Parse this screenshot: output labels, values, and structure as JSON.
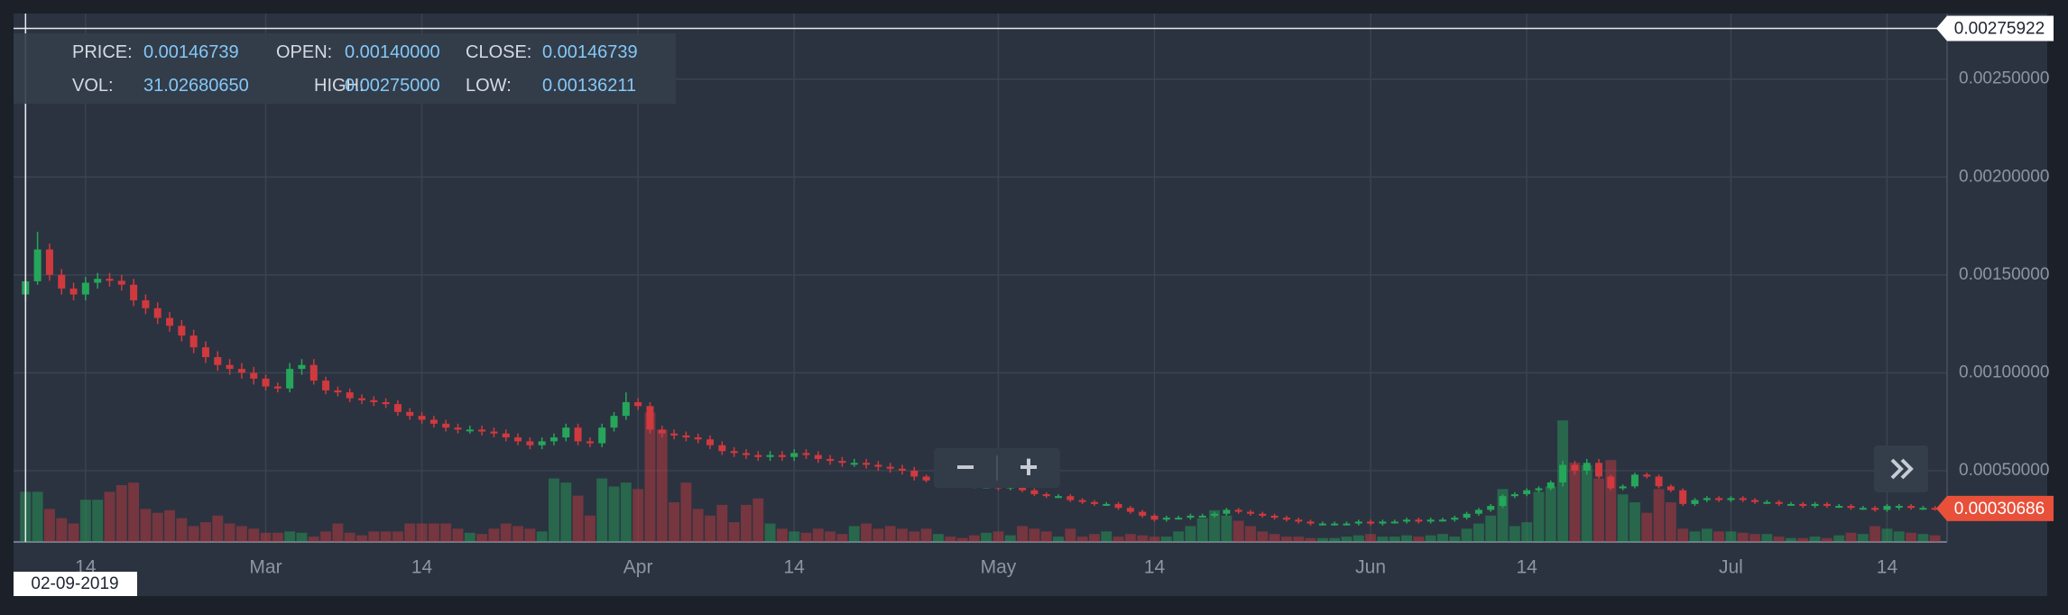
{
  "chart_data": {
    "type": "candlestick",
    "xlim": [
      "2019-02-08",
      "2019-07-19"
    ],
    "ylim": [
      0.000136,
      0.002835
    ],
    "grid": true,
    "up_color": "#26a65b",
    "down_color": "#d0393e",
    "yticks": [
      {
        "value": 0.0005,
        "label": "0.00050000"
      },
      {
        "value": 0.001,
        "label": "0.00100000"
      },
      {
        "value": 0.0015,
        "label": "0.00150000"
      },
      {
        "value": 0.002,
        "label": "0.00200000"
      },
      {
        "value": 0.0025,
        "label": "0.00250000"
      }
    ],
    "xticks": [
      {
        "value": "2019-02-14",
        "label": "14"
      },
      {
        "value": "2019-03-01",
        "label": "Mar"
      },
      {
        "value": "2019-03-14",
        "label": "14"
      },
      {
        "value": "2019-04-01",
        "label": "Apr"
      },
      {
        "value": "2019-04-14",
        "label": "14"
      },
      {
        "value": "2019-05-01",
        "label": "May"
      },
      {
        "value": "2019-05-14",
        "label": "14"
      },
      {
        "value": "2019-06-01",
        "label": "Jun"
      },
      {
        "value": "2019-06-14",
        "label": "14"
      },
      {
        "value": "2019-07-01",
        "label": "Jul"
      },
      {
        "value": "2019-07-14",
        "label": "14"
      }
    ],
    "x": [
      "2019-02-09",
      "2019-02-10",
      "2019-02-11",
      "2019-02-12",
      "2019-02-13",
      "2019-02-14",
      "2019-02-15",
      "2019-02-16",
      "2019-02-17",
      "2019-02-18",
      "2019-02-19",
      "2019-02-20",
      "2019-02-21",
      "2019-02-22",
      "2019-02-23",
      "2019-02-24",
      "2019-02-25",
      "2019-02-26",
      "2019-02-27",
      "2019-02-28",
      "2019-03-01",
      "2019-03-02",
      "2019-03-03",
      "2019-03-04",
      "2019-03-05",
      "2019-03-06",
      "2019-03-07",
      "2019-03-08",
      "2019-03-09",
      "2019-03-10",
      "2019-03-11",
      "2019-03-12",
      "2019-03-13",
      "2019-03-14",
      "2019-03-15",
      "2019-03-16",
      "2019-03-17",
      "2019-03-18",
      "2019-03-19",
      "2019-03-20",
      "2019-03-21",
      "2019-03-22",
      "2019-03-23",
      "2019-03-24",
      "2019-03-25",
      "2019-03-26",
      "2019-03-27",
      "2019-03-28",
      "2019-03-29",
      "2019-03-30",
      "2019-03-31",
      "2019-04-01",
      "2019-04-02",
      "2019-04-03",
      "2019-04-04",
      "2019-04-05",
      "2019-04-06",
      "2019-04-07",
      "2019-04-08",
      "2019-04-09",
      "2019-04-10",
      "2019-04-11",
      "2019-04-12",
      "2019-04-13",
      "2019-04-14",
      "2019-04-15",
      "2019-04-16",
      "2019-04-17",
      "2019-04-18",
      "2019-04-19",
      "2019-04-20",
      "2019-04-21",
      "2019-04-22",
      "2019-04-23",
      "2019-04-24",
      "2019-04-25",
      "2019-04-26",
      "2019-04-27",
      "2019-04-28",
      "2019-04-29",
      "2019-04-30",
      "2019-05-01",
      "2019-05-02",
      "2019-05-03",
      "2019-05-04",
      "2019-05-05",
      "2019-05-06",
      "2019-05-07",
      "2019-05-08",
      "2019-05-09",
      "2019-05-10",
      "2019-05-11",
      "2019-05-12",
      "2019-05-13",
      "2019-05-14",
      "2019-05-15",
      "2019-05-16",
      "2019-05-17",
      "2019-05-18",
      "2019-05-19",
      "2019-05-20",
      "2019-05-21",
      "2019-05-22",
      "2019-05-23",
      "2019-05-24",
      "2019-05-25",
      "2019-05-26",
      "2019-05-27",
      "2019-05-28",
      "2019-05-29",
      "2019-05-30",
      "2019-05-31",
      "2019-06-01",
      "2019-06-02",
      "2019-06-03",
      "2019-06-04",
      "2019-06-05",
      "2019-06-06",
      "2019-06-07",
      "2019-06-08",
      "2019-06-09",
      "2019-06-10",
      "2019-06-11",
      "2019-06-12",
      "2019-06-13",
      "2019-06-14",
      "2019-06-15",
      "2019-06-16",
      "2019-06-17",
      "2019-06-18",
      "2019-06-19",
      "2019-06-20",
      "2019-06-21",
      "2019-06-22",
      "2019-06-23",
      "2019-06-24",
      "2019-06-25",
      "2019-06-26",
      "2019-06-27",
      "2019-06-28",
      "2019-06-29",
      "2019-06-30",
      "2019-07-01",
      "2019-07-02",
      "2019-07-03",
      "2019-07-04",
      "2019-07-05",
      "2019-07-06",
      "2019-07-07",
      "2019-07-08",
      "2019-07-09",
      "2019-07-10",
      "2019-07-11",
      "2019-07-12",
      "2019-07-13",
      "2019-07-14",
      "2019-07-15",
      "2019-07-16",
      "2019-07-17",
      "2019-07-18"
    ],
    "open": [
      0.0014,
      0.00146739,
      0.00163,
      0.0015,
      0.00143,
      0.0014,
      0.00146,
      0.00148,
      0.00147,
      0.00145,
      0.00137,
      0.00133,
      0.00128,
      0.00124,
      0.00119,
      0.00113,
      0.00108,
      0.00104,
      0.00102,
      0.001,
      0.00097,
      0.00093,
      0.00092,
      0.00102,
      0.00104,
      0.00096,
      0.00091,
      0.0009,
      0.00087,
      0.00086,
      0.00085,
      0.00084,
      0.0008,
      0.00078,
      0.00076,
      0.00074,
      0.00072,
      0.00071,
      0.00071,
      0.0007,
      0.00069,
      0.00067,
      0.00065,
      0.00063,
      0.00065,
      0.00067,
      0.00072,
      0.00065,
      0.00064,
      0.00072,
      0.00078,
      0.00085,
      0.00083,
      0.00071,
      0.00069,
      0.00068,
      0.00067,
      0.00066,
      0.00063,
      0.0006,
      0.00059,
      0.00058,
      0.00057,
      0.00058,
      0.00057,
      0.00059,
      0.00058,
      0.00056,
      0.00055,
      0.00054,
      0.00054,
      0.00053,
      0.00052,
      0.00051,
      0.0005,
      0.00047,
      0.00045,
      0.00045,
      0.00044,
      0.00043,
      0.00042,
      0.00042,
      0.00041,
      0.00042,
      0.0004,
      0.00038,
      0.00037,
      0.00037,
      0.00035,
      0.00034,
      0.00033,
      0.00033,
      0.00031,
      0.00029,
      0.00027,
      0.00025,
      0.00026,
      0.00026,
      0.00027,
      0.00027,
      0.00028,
      0.0003,
      0.00029,
      0.00028,
      0.00027,
      0.00026,
      0.00025,
      0.00024,
      0.00023,
      0.00023,
      0.00023,
      0.00023,
      0.00024,
      0.00023,
      0.00024,
      0.00024,
      0.00025,
      0.00024,
      0.00025,
      0.00025,
      0.00026,
      0.00028,
      0.0003,
      0.00032,
      0.00037,
      0.00038,
      0.0004,
      0.00041,
      0.00044,
      0.00053,
      0.0005,
      0.00054,
      0.00047,
      0.00041,
      0.00042,
      0.00048,
      0.00047,
      0.00042,
      0.0004,
      0.00033,
      0.00035,
      0.00036,
      0.00035,
      0.00036,
      0.00035,
      0.00034,
      0.00034,
      0.00033,
      0.00033,
      0.00032,
      0.00033,
      0.00032,
      0.00032,
      0.00031,
      0.00031,
      0.0003,
      0.00032,
      0.00032,
      0.00031,
      0.00031
    ],
    "high": [
      0.00275,
      0.00172,
      0.00166,
      0.00153,
      0.00146,
      0.00149,
      0.00151,
      0.00151,
      0.0015,
      0.00148,
      0.0014,
      0.00136,
      0.00131,
      0.00127,
      0.00122,
      0.00116,
      0.00111,
      0.00107,
      0.00105,
      0.00103,
      0.00099,
      0.00095,
      0.00105,
      0.00107,
      0.00107,
      0.00098,
      0.00093,
      0.00092,
      0.00089,
      0.00088,
      0.00087,
      0.00086,
      0.00082,
      0.0008,
      0.00078,
      0.00076,
      0.00074,
      0.00073,
      0.00073,
      0.00072,
      0.00071,
      0.00069,
      0.00067,
      0.00067,
      0.00069,
      0.00074,
      0.00074,
      0.00067,
      0.00074,
      0.0008,
      0.0009,
      0.00087,
      0.00085,
      0.00073,
      0.00071,
      0.0007,
      0.00069,
      0.00068,
      0.00065,
      0.00062,
      0.00061,
      0.0006,
      0.0006,
      0.0006,
      0.00061,
      0.00061,
      0.0006,
      0.00058,
      0.00057,
      0.00056,
      0.00056,
      0.00055,
      0.00054,
      0.00053,
      0.00052,
      0.00048,
      0.00046,
      0.00046,
      0.00045,
      0.00044,
      0.00043,
      0.00043,
      0.00043,
      0.00043,
      0.00041,
      0.00039,
      0.00038,
      0.00038,
      0.00036,
      0.00035,
      0.00034,
      0.00034,
      0.00032,
      0.0003,
      0.00028,
      0.00027,
      0.00027,
      0.00028,
      0.00028,
      0.00029,
      0.00031,
      0.00031,
      0.0003,
      0.00029,
      0.00028,
      0.00027,
      0.00026,
      0.00025,
      0.00024,
      0.00024,
      0.00024,
      0.00025,
      0.00025,
      0.00025,
      0.00025,
      0.00026,
      0.00026,
      0.00026,
      0.00026,
      0.00027,
      0.00029,
      0.00031,
      0.00033,
      0.00038,
      0.00039,
      0.00041,
      0.00042,
      0.00045,
      0.00055,
      0.00055,
      0.00056,
      0.00056,
      0.00048,
      0.00043,
      0.00049,
      0.00049,
      0.00048,
      0.00043,
      0.00041,
      0.00036,
      0.00037,
      0.00037,
      0.00037,
      0.00037,
      0.00036,
      0.00035,
      0.00035,
      0.00034,
      0.00034,
      0.00034,
      0.00034,
      0.00033,
      0.00033,
      0.00032,
      0.00032,
      0.00033,
      0.00033,
      0.00033,
      0.00032,
      0.00032
    ],
    "low": [
      0.00136211,
      0.00145,
      0.00147,
      0.0014,
      0.00137,
      0.00137,
      0.00143,
      0.00144,
      0.00142,
      0.00134,
      0.0013,
      0.00125,
      0.00121,
      0.00116,
      0.0011,
      0.00105,
      0.00101,
      0.00099,
      0.00097,
      0.00094,
      0.00091,
      0.0009,
      0.0009,
      0.00099,
      0.00094,
      0.00089,
      0.00088,
      0.00085,
      0.00084,
      0.00083,
      0.00082,
      0.00078,
      0.00076,
      0.00074,
      0.00072,
      0.0007,
      0.00069,
      0.00069,
      0.00068,
      0.00067,
      0.00065,
      0.00063,
      0.00061,
      0.00061,
      0.00063,
      0.00065,
      0.00063,
      0.00062,
      0.00062,
      0.0007,
      0.00076,
      0.00081,
      0.00069,
      0.00067,
      0.00066,
      0.00065,
      0.00064,
      0.00061,
      0.00058,
      0.00057,
      0.00056,
      0.00055,
      0.00055,
      0.00055,
      0.00055,
      0.00056,
      0.00054,
      0.00053,
      0.00052,
      0.00052,
      0.00051,
      0.0005,
      0.00049,
      0.00048,
      0.00045,
      0.00044,
      0.00044,
      0.00043,
      0.00042,
      0.00041,
      0.00041,
      0.0004,
      0.0004,
      0.00039,
      0.00037,
      0.00036,
      0.00036,
      0.00034,
      0.00033,
      0.00032,
      0.00032,
      0.0003,
      0.00028,
      0.00026,
      0.00024,
      0.00024,
      0.00025,
      0.00025,
      0.00026,
      0.00026,
      0.00027,
      0.00028,
      0.00027,
      0.00026,
      0.00025,
      0.00024,
      0.00023,
      0.00022,
      0.00022,
      0.00022,
      0.00022,
      0.00022,
      0.00022,
      0.00022,
      0.00023,
      0.00023,
      0.00023,
      0.00023,
      0.00024,
      0.00024,
      0.00025,
      0.00027,
      0.00029,
      0.00031,
      0.00036,
      0.00037,
      0.00039,
      0.0004,
      0.00042,
      0.00048,
      0.00048,
      0.00046,
      0.0004,
      0.0004,
      0.00041,
      0.00046,
      0.00041,
      0.00039,
      0.00032,
      0.00032,
      0.00034,
      0.00034,
      0.00034,
      0.00034,
      0.00033,
      0.00033,
      0.00032,
      0.00032,
      0.00031,
      0.00031,
      0.00031,
      0.00031,
      0.0003,
      0.0003,
      0.00029,
      0.00029,
      0.0003,
      0.0003,
      0.0003,
      0.000296
    ],
    "close": [
      0.00146739,
      0.00163,
      0.0015,
      0.00143,
      0.0014,
      0.00146,
      0.00148,
      0.00147,
      0.00145,
      0.00137,
      0.00133,
      0.00128,
      0.00124,
      0.00119,
      0.00113,
      0.00108,
      0.00104,
      0.00102,
      0.001,
      0.00097,
      0.00093,
      0.00092,
      0.00102,
      0.00104,
      0.00096,
      0.00091,
      0.0009,
      0.00087,
      0.00086,
      0.00085,
      0.00084,
      0.0008,
      0.00078,
      0.00076,
      0.00074,
      0.00072,
      0.00071,
      0.00071,
      0.0007,
      0.00069,
      0.00067,
      0.00065,
      0.00063,
      0.00065,
      0.00067,
      0.00072,
      0.00065,
      0.00064,
      0.00072,
      0.00078,
      0.00085,
      0.00083,
      0.00071,
      0.00069,
      0.00068,
      0.00067,
      0.00066,
      0.00063,
      0.0006,
      0.00059,
      0.00058,
      0.00057,
      0.00058,
      0.00057,
      0.00059,
      0.00058,
      0.00056,
      0.00055,
      0.00054,
      0.00054,
      0.00053,
      0.00052,
      0.00051,
      0.0005,
      0.00047,
      0.00045,
      0.00045,
      0.00044,
      0.00043,
      0.00042,
      0.00042,
      0.00041,
      0.00042,
      0.0004,
      0.00038,
      0.00037,
      0.00037,
      0.00035,
      0.00034,
      0.00033,
      0.00033,
      0.00031,
      0.00029,
      0.00027,
      0.00025,
      0.00026,
      0.00026,
      0.00027,
      0.00027,
      0.00028,
      0.0003,
      0.00029,
      0.00028,
      0.00027,
      0.00026,
      0.00025,
      0.00024,
      0.00023,
      0.00023,
      0.00023,
      0.00023,
      0.00024,
      0.00023,
      0.00024,
      0.00024,
      0.00025,
      0.00024,
      0.00025,
      0.00025,
      0.00026,
      0.00028,
      0.0003,
      0.00032,
      0.00037,
      0.00038,
      0.0004,
      0.00041,
      0.00044,
      0.00053,
      0.0005,
      0.00054,
      0.00047,
      0.00041,
      0.00042,
      0.00048,
      0.00047,
      0.00042,
      0.0004,
      0.00033,
      0.00035,
      0.00036,
      0.00035,
      0.00036,
      0.00035,
      0.00034,
      0.00034,
      0.00033,
      0.00033,
      0.00032,
      0.00033,
      0.00032,
      0.00032,
      0.00031,
      0.00031,
      0.0003,
      0.00032,
      0.00032,
      0.00031,
      0.00031,
      0.00030686
    ],
    "volume": [
      31.0268065,
      31.0,
      20.4,
      14.7,
      11.4,
      26.1,
      26.1,
      31.0,
      35.1,
      36.7,
      20.4,
      18.0,
      19.6,
      14.7,
      9.8,
      12.2,
      16.3,
      11.4,
      9.8,
      8.2,
      5.7,
      5.7,
      6.5,
      5.7,
      3.3,
      6.5,
      11.4,
      5.7,
      4.1,
      6.5,
      6.5,
      6.5,
      11.4,
      11.4,
      11.4,
      11.4,
      8.2,
      5.7,
      4.9,
      8.2,
      11.4,
      9.8,
      8.2,
      6.5,
      39.2,
      36.7,
      28.6,
      16.3,
      39.2,
      34.3,
      36.7,
      32.7,
      80.0,
      69.4,
      24.5,
      36.7,
      20.4,
      16.3,
      22.9,
      12.2,
      22.9,
      26.9,
      11.4,
      8.2,
      6.5,
      5.7,
      8.2,
      6.5,
      4.9,
      9.8,
      11.4,
      8.2,
      9.8,
      8.2,
      6.5,
      8.2,
      4.9,
      3.3,
      2.4,
      4.1,
      5.7,
      6.5,
      4.1,
      9.8,
      8.2,
      6.5,
      3.3,
      8.2,
      3.3,
      4.9,
      6.5,
      3.3,
      4.9,
      4.1,
      3.3,
      3.3,
      6.5,
      9.8,
      14.7,
      19.6,
      16.3,
      13.1,
      9.8,
      6.5,
      4.9,
      3.3,
      3.3,
      2.4,
      2.4,
      2.4,
      3.3,
      4.1,
      4.9,
      3.3,
      3.3,
      4.1,
      3.3,
      4.1,
      4.9,
      3.3,
      8.2,
      11.4,
      16.3,
      32.7,
      9.8,
      12.2,
      31.0,
      34.3,
      75.1,
      49.0,
      47.4,
      39.2,
      50.6,
      29.4,
      24.5,
      18.0,
      32.7,
      24.5,
      8.2,
      6.5,
      8.2,
      6.5,
      6.5,
      5.7,
      4.9,
      4.9,
      3.3,
      2.4,
      2.4,
      3.3,
      2.4,
      4.1,
      5.7,
      4.9,
      9.8,
      8.2,
      6.5,
      5.7,
      4.9,
      4.1
    ],
    "crosshair": {
      "price": 0.00275922,
      "date": {
        "value": "2019-02-09",
        "label": "02-09-2019"
      }
    },
    "last_price": 0.00030686,
    "tooltip": {
      "rows": [
        [
          {
            "label": "PRICE:",
            "value": "0.00146739"
          },
          {
            "label": "OPEN:",
            "value": "0.00140000"
          },
          {
            "label": "CLOSE:",
            "value": "0.00146739"
          }
        ],
        [
          {
            "label": "VOL:",
            "value": "31.02680650"
          },
          {
            "label": "HIGH:",
            "value": "0.00275000"
          },
          {
            "label": "LOW:",
            "value": "0.00136211"
          }
        ]
      ]
    }
  }
}
